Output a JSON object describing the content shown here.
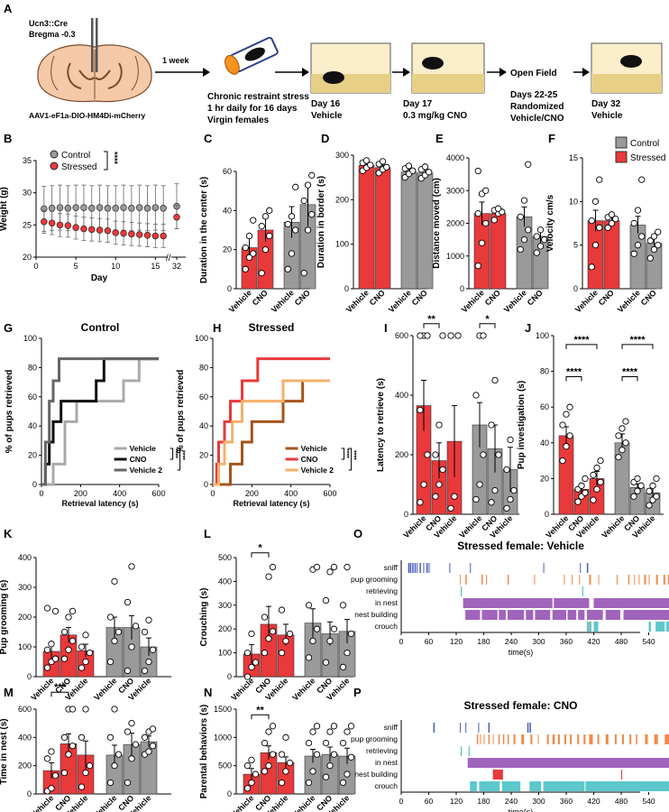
{
  "colors": {
    "control": "#9a9a9a",
    "stressed": "#e8393b",
    "sniff": "#4a5dbf",
    "grooming": "#f08a4b",
    "retrieving": "#3fb6b0",
    "nest": "#a064bd",
    "building": "#e8393b",
    "crouch": "#5cc8cc",
    "cre": "#b5623a"
  },
  "panel_letters": [
    "A",
    "B",
    "C",
    "D",
    "E",
    "F",
    "G",
    "H",
    "I",
    "J",
    "K",
    "L",
    "M",
    "N",
    "O",
    "P"
  ],
  "panelA": {
    "mouse_line": "Ucn3::Cre",
    "bregma": "Bregma -0.3",
    "virus": "AAV1-eF1a-DIO-HM4Di-mCherry",
    "arrow_label": "1 week",
    "stress_lines": [
      "Chronic restraint stress",
      "1 hr daily for 16 days",
      "Virgin females"
    ],
    "day16": [
      "Day 16",
      "Vehicle"
    ],
    "day17": [
      "Day 17",
      "0.3 mg/kg CNO"
    ],
    "open_field": "Open Field",
    "days22": [
      "Days 22-25",
      "Randomized",
      "Vehicle/CNO"
    ],
    "day32": [
      "Day 32",
      "Vehicle"
    ]
  },
  "chart_data": [
    {
      "id": "B",
      "type": "line",
      "xlabel": "Day",
      "ylabel": "Weight (g)",
      "ylim": [
        20,
        35
      ],
      "yticks": [
        20,
        25,
        30,
        35
      ],
      "xticks": [
        "0",
        "5",
        "10",
        "15",
        "32"
      ],
      "legend": [
        "Control",
        "Stressed"
      ],
      "sig": "****",
      "series": [
        {
          "name": "Control",
          "x": [
            1,
            2,
            3,
            4,
            5,
            6,
            7,
            8,
            9,
            10,
            11,
            12,
            13,
            14,
            15,
            16,
            32
          ],
          "values": [
            27.5,
            27.6,
            27.7,
            27.6,
            27.7,
            27.7,
            27.6,
            27.7,
            27.6,
            27.6,
            27.7,
            27.6,
            27.7,
            27.6,
            27.7,
            27.6,
            27.9
          ],
          "err": 3.5
        },
        {
          "name": "Stressed",
          "x": [
            1,
            2,
            3,
            4,
            5,
            6,
            7,
            8,
            9,
            10,
            11,
            12,
            13,
            14,
            15,
            16,
            32
          ],
          "values": [
            25.5,
            25.3,
            25.0,
            24.9,
            24.6,
            24.4,
            24.3,
            24.2,
            24.1,
            23.8,
            23.7,
            23.6,
            23.5,
            23.4,
            23.3,
            23.3,
            26.2
          ],
          "err": 1.8
        }
      ]
    },
    {
      "id": "C",
      "type": "bar",
      "ylabel": "Duration in the center (s)",
      "ylim": [
        0,
        60
      ],
      "yticks": [
        0,
        20,
        40,
        60
      ],
      "categories": [
        "Vehicle",
        "CNO",
        "Vehicle",
        "CNO"
      ],
      "values": [
        21,
        30,
        34,
        43
      ],
      "errs": [
        5,
        6,
        8,
        11
      ],
      "points": [
        [
          10,
          16,
          18,
          21,
          27,
          35
        ],
        [
          8,
          20,
          27,
          32,
          37,
          40
        ],
        [
          10,
          18,
          30,
          33,
          37,
          52
        ],
        [
          8,
          30,
          38,
          45,
          53,
          58
        ]
      ]
    },
    {
      "id": "D",
      "type": "bar",
      "ylabel": "Duration in border (s)",
      "ylim": [
        0,
        300
      ],
      "yticks": [
        0,
        100,
        200,
        300
      ],
      "categories": [
        "Vehicle",
        "CNO",
        "Vehicle",
        "CNO"
      ],
      "values": [
        277,
        272,
        262,
        260
      ],
      "errs": [
        5,
        6,
        7,
        8
      ],
      "points": [
        [
          265,
          272,
          278,
          283,
          288
        ],
        [
          260,
          268,
          273,
          280,
          286
        ],
        [
          250,
          258,
          265,
          270,
          276
        ],
        [
          248,
          255,
          262,
          268,
          274
        ]
      ]
    },
    {
      "id": "E",
      "type": "bar",
      "ylabel": "Distance moved (cm)",
      "ylim": [
        0,
        4000
      ],
      "yticks": [
        0,
        1000,
        2000,
        3000,
        4000
      ],
      "categories": [
        "Vehicle",
        "CNO",
        "Vehicle",
        "CNO"
      ],
      "values": [
        2300,
        2300,
        2200,
        1600
      ],
      "errs": [
        350,
        100,
        300,
        200
      ],
      "points": [
        [
          700,
          1400,
          2000,
          2300,
          2900,
          3000,
          3600
        ],
        [
          2100,
          2300,
          2350,
          2400,
          2450
        ],
        [
          1200,
          1500,
          1800,
          2200,
          2700,
          3800
        ],
        [
          1100,
          1300,
          1500,
          1600,
          1800
        ]
      ]
    },
    {
      "id": "F",
      "type": "bar",
      "ylabel": "Velocity cm/s",
      "ylim": [
        0,
        15
      ],
      "yticks": [
        0,
        5,
        10,
        15
      ],
      "categories": [
        "Vehicle",
        "CNO",
        "Vehicle",
        "CNO"
      ],
      "values": [
        7.8,
        7.8,
        7.3,
        5.2
      ],
      "errs": [
        1.2,
        0.4,
        1.0,
        0.6
      ],
      "legend": [
        "Control",
        "Stressed"
      ],
      "points": [
        [
          2.5,
          5,
          7,
          7.8,
          10,
          12.5
        ],
        [
          7,
          7.5,
          8,
          8.2,
          8.5
        ],
        [
          4,
          5,
          6,
          7.5,
          9,
          12.5
        ],
        [
          3.5,
          4.5,
          5,
          5.5,
          6,
          6.5
        ]
      ]
    },
    {
      "id": "G",
      "type": "line",
      "title": "Control",
      "xlabel": "Retrieval latency (s)",
      "ylabel": "% of pups retrieved",
      "xlim": [
        0,
        600
      ],
      "ylim": [
        0,
        100
      ],
      "xticks": [
        0,
        200,
        400,
        600
      ],
      "yticks": [
        0,
        20,
        40,
        60,
        80,
        100
      ],
      "legend": [
        "Vehicle",
        "CNO",
        "Vehicle 2"
      ],
      "sig": [
        "****",
        "****"
      ],
      "series": [
        {
          "name": "Vehicle",
          "x": [
            0,
            60,
            60,
            120,
            180,
            380,
            420,
            500,
            600
          ],
          "values": [
            0,
            0,
            14,
            43,
            57,
            57,
            71,
            86,
            86
          ]
        },
        {
          "name": "CNO",
          "x": [
            0,
            20,
            40,
            60,
            100,
            260,
            280,
            320,
            600
          ],
          "values": [
            0,
            14,
            29,
            43,
            57,
            57,
            71,
            86,
            86
          ]
        },
        {
          "name": "Vehicle 2",
          "x": [
            0,
            20,
            40,
            60,
            90,
            600
          ],
          "values": [
            0,
            29,
            57,
            71,
            86,
            86
          ]
        }
      ]
    },
    {
      "id": "H",
      "type": "line",
      "title": "Stressed",
      "xlabel": "Retrieval latency (s)",
      "ylabel": "% of pups retrieved",
      "xlim": [
        0,
        600
      ],
      "ylim": [
        0,
        100
      ],
      "xticks": [
        0,
        200,
        400,
        600
      ],
      "yticks": [
        0,
        20,
        40,
        60,
        80,
        100
      ],
      "legend": [
        "Vehicle",
        "CNO",
        "Vehicle 2"
      ],
      "sig": [
        "****",
        "****"
      ],
      "series": [
        {
          "name": "Vehicle",
          "x": [
            0,
            90,
            150,
            200,
            360,
            460,
            600
          ],
          "values": [
            0,
            14,
            29,
            43,
            57,
            71,
            71
          ]
        },
        {
          "name": "CNO",
          "x": [
            0,
            20,
            30,
            60,
            90,
            110,
            150,
            230,
            600
          ],
          "values": [
            0,
            14,
            29,
            43,
            57,
            57,
            71,
            86,
            86
          ]
        },
        {
          "name": "Vehicle 2",
          "x": [
            0,
            30,
            60,
            100,
            150,
            300,
            360,
            600
          ],
          "values": [
            0,
            14,
            29,
            43,
            57,
            57,
            71,
            71
          ]
        }
      ]
    },
    {
      "id": "I",
      "type": "bar",
      "ylabel": "Latency to retrieve (s)",
      "ylim": [
        0,
        600
      ],
      "yticks": [
        0,
        200,
        400,
        600
      ],
      "categories": [
        "Vehicle",
        "CNO",
        "Vehicle",
        "Vehicle",
        "CNO",
        "Vehicle"
      ],
      "values": [
        365,
        180,
        245,
        300,
        220,
        150
      ],
      "errs": [
        85,
        60,
        120,
        75,
        80,
        75
      ],
      "sig": [
        "**",
        "*"
      ],
      "points": [
        [
          40,
          100,
          200,
          350,
          600,
          600,
          600
        ],
        [
          60,
          100,
          150,
          200,
          300,
          600
        ],
        [
          20,
          60,
          600,
          600
        ],
        [
          50,
          100,
          200,
          400,
          600,
          600
        ],
        [
          40,
          80,
          200,
          300,
          450
        ],
        [
          20,
          50,
          80,
          150,
          250
        ]
      ]
    },
    {
      "id": "J",
      "type": "bar",
      "ylabel": "Pup investigation (s)",
      "ylim": [
        0,
        100
      ],
      "yticks": [
        0,
        20,
        40,
        60,
        80,
        100
      ],
      "categories": [
        "Vehicle",
        "CNO",
        "Vehicle",
        "Vehicle",
        "CNO",
        "Vehicle"
      ],
      "values": [
        44,
        14,
        20,
        40,
        15,
        12
      ],
      "errs": [
        5,
        3,
        4,
        5,
        2,
        3
      ],
      "sig": [
        "****",
        "****",
        "****",
        "****"
      ],
      "points": [
        [
          30,
          38,
          44,
          50,
          56,
          60
        ],
        [
          7,
          10,
          12,
          14,
          16,
          20
        ],
        [
          8,
          14,
          18,
          22,
          26,
          30
        ],
        [
          32,
          36,
          40,
          44,
          48,
          52
        ],
        [
          10,
          13,
          16,
          18,
          20
        ],
        [
          5,
          8,
          10,
          13,
          16,
          20
        ]
      ]
    },
    {
      "id": "K",
      "type": "bar",
      "ylabel": "Pup grooming (s)",
      "ylim": [
        0,
        400
      ],
      "yticks": [
        0,
        100,
        200,
        300,
        400
      ],
      "categories": [
        "Vehicle",
        "CNO",
        "Vehicle",
        "Vehicle",
        "CNO",
        "Vehicle"
      ],
      "values": [
        85,
        140,
        87,
        165,
        165,
        100
      ],
      "errs": [
        25,
        25,
        22,
        35,
        40,
        30
      ],
      "points": [
        [
          30,
          50,
          60,
          90,
          110,
          220,
          230
        ],
        [
          60,
          90,
          120,
          150,
          200,
          220
        ],
        [
          30,
          50,
          80,
          100,
          140
        ],
        [
          50,
          120,
          150,
          200,
          320
        ],
        [
          20,
          100,
          170,
          250,
          370
        ],
        [
          20,
          50,
          90,
          150,
          190
        ]
      ]
    },
    {
      "id": "L",
      "type": "bar",
      "ylabel": "Crouching (s)",
      "ylim": [
        0,
        500
      ],
      "yticks": [
        0,
        100,
        200,
        300,
        400,
        500
      ],
      "categories": [
        "Vehicle",
        "CNO",
        "Vehicle",
        "Vehicle",
        "CNO",
        "Vehicle"
      ],
      "values": [
        95,
        220,
        175,
        225,
        180,
        190
      ],
      "errs": [
        40,
        75,
        45,
        60,
        50,
        50
      ],
      "sig": [
        "*"
      ],
      "points": [
        [
          0,
          40,
          60,
          100,
          180
        ],
        [
          100,
          160,
          190,
          250,
          420,
          460
        ],
        [
          100,
          150,
          180,
          280
        ],
        [
          80,
          150,
          200,
          300,
          450,
          460
        ],
        [
          60,
          150,
          200,
          320,
          440,
          460
        ],
        [
          40,
          100,
          180,
          300,
          460
        ]
      ]
    },
    {
      "id": "M",
      "type": "bar",
      "ylabel": "Time in nest (s)",
      "ylim": [
        0,
        600
      ],
      "yticks": [
        0,
        200,
        400,
        600
      ],
      "categories": [
        "Vehicle",
        "CNO",
        "Vehicle",
        "Vehicle",
        "CNO",
        "Vehicle"
      ],
      "values": [
        165,
        355,
        275,
        275,
        350,
        370
      ],
      "errs": [
        55,
        70,
        100,
        70,
        80,
        40
      ],
      "sig": [
        "***"
      ],
      "points": [
        [
          20,
          40,
          130,
          250,
          300
        ],
        [
          150,
          280,
          340,
          400,
          600,
          600
        ],
        [
          50,
          150,
          200,
          400,
          600
        ],
        [
          80,
          200,
          280,
          400,
          600
        ],
        [
          80,
          250,
          350,
          440,
          500
        ],
        [
          280,
          300,
          340,
          400,
          440,
          460
        ]
      ]
    },
    {
      "id": "N",
      "type": "bar",
      "ylabel": "Parental behaviors (s)",
      "ylim": [
        0,
        1500
      ],
      "yticks": [
        0,
        500,
        1000,
        1500
      ],
      "categories": [
        "Vehicle",
        "CNO",
        "Vehicle",
        "Vehicle",
        "CNO",
        "Vehicle"
      ],
      "values": [
        350,
        730,
        555,
        670,
        700,
        670
      ],
      "errs": [
        100,
        120,
        100,
        120,
        130,
        140
      ],
      "sig": [
        "**"
      ],
      "points": [
        [
          100,
          200,
          350,
          500,
          600
        ],
        [
          400,
          500,
          700,
          900,
          1100,
          1200
        ],
        [
          200,
          400,
          550,
          700,
          1000
        ],
        [
          200,
          400,
          700,
          900,
          1100,
          1200
        ],
        [
          300,
          500,
          700,
          900,
          1100,
          1200
        ],
        [
          200,
          350,
          650,
          900,
          1100,
          1200
        ]
      ]
    }
  ],
  "ethograms": [
    {
      "id": "O",
      "title": "Stressed female: Vehicle",
      "xlabel": "time(s)",
      "xticks": [
        0,
        60,
        120,
        180,
        240,
        300,
        360,
        420,
        480,
        540
      ],
      "labels": [
        "sniff",
        "pup grooming",
        "retrieving",
        "in nest",
        "nest building",
        "crouch"
      ]
    },
    {
      "id": "P",
      "title": "Stressed female: CNO",
      "xlabel": "time(s)",
      "xticks": [
        0,
        60,
        120,
        180,
        240,
        300,
        360,
        420,
        480,
        540
      ],
      "labels": [
        "sniff",
        "pup grooming",
        "retrieving",
        "in nest",
        "nest building",
        "crouch"
      ]
    }
  ]
}
